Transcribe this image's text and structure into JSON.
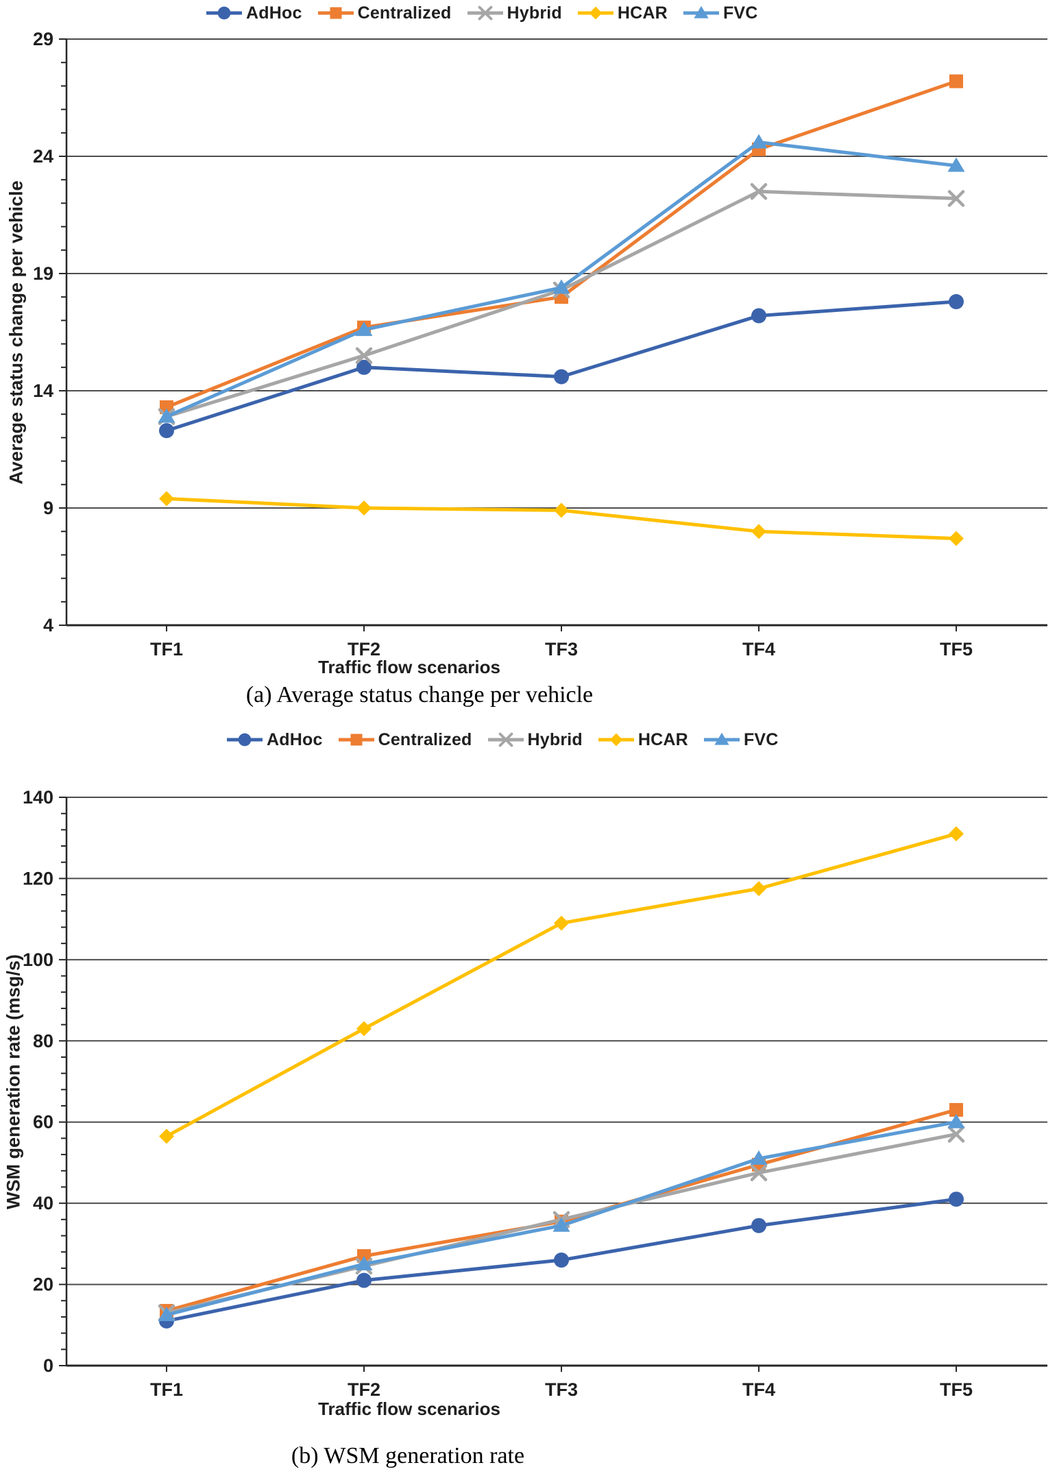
{
  "figure_captions": {
    "a": "(a) Average status change per vehicle",
    "b": "(b) WSM generation rate"
  },
  "colors": {
    "adhoc": "#3B63AC",
    "centralized": "#ED7D31",
    "hybrid": "#A6A6A6",
    "hcar": "#FFC000",
    "fvc": "#5B9BD5",
    "gridline": "#4d4d4d",
    "axis": "#262626"
  },
  "chart_data": [
    {
      "type": "line",
      "title": "",
      "categories": [
        "TF1",
        "TF2",
        "TF3",
        "TF4",
        "TF5"
      ],
      "xlabel": "Traffic flow scenarios",
      "ylabel": "Average status change per vehicle",
      "ylim": [
        4,
        29
      ],
      "yticks": [
        4,
        9,
        14,
        19,
        24,
        29
      ],
      "minor_tick_step": 1,
      "grid": true,
      "legend_position": "top",
      "series": [
        {
          "name": "AdHoc",
          "color": "#3B63AC",
          "marker": "circle",
          "values": [
            12.3,
            15.0,
            14.6,
            17.2,
            17.8
          ]
        },
        {
          "name": "Centralized",
          "color": "#ED7D31",
          "marker": "square",
          "values": [
            13.3,
            16.7,
            18.0,
            24.3,
            27.2
          ]
        },
        {
          "name": "Hybrid",
          "color": "#A6A6A6",
          "marker": "x",
          "values": [
            12.9,
            15.5,
            18.3,
            22.5,
            22.2
          ]
        },
        {
          "name": "HCAR",
          "color": "#FFC000",
          "marker": "diamond",
          "values": [
            9.4,
            9.0,
            8.9,
            8.0,
            7.7
          ]
        },
        {
          "name": "FVC",
          "color": "#5B9BD5",
          "marker": "triangle",
          "values": [
            12.9,
            16.6,
            18.4,
            24.6,
            23.6
          ]
        }
      ]
    },
    {
      "type": "line",
      "title": "",
      "categories": [
        "TF1",
        "TF2",
        "TF3",
        "TF4",
        "TF5"
      ],
      "xlabel": "Traffic flow scenarios",
      "ylabel": "WSM generation rate (msg/s)",
      "ylim": [
        0,
        140
      ],
      "yticks": [
        0,
        20,
        40,
        60,
        80,
        100,
        120,
        140
      ],
      "minor_tick_step": 4,
      "grid": true,
      "legend_position": "top",
      "series": [
        {
          "name": "AdHoc",
          "color": "#3B63AC",
          "marker": "circle",
          "values": [
            11,
            21,
            26,
            34.5,
            41
          ]
        },
        {
          "name": "Centralized",
          "color": "#ED7D31",
          "marker": "square",
          "values": [
            13.5,
            27,
            35.5,
            49.5,
            63
          ]
        },
        {
          "name": "Hybrid",
          "color": "#A6A6A6",
          "marker": "x",
          "values": [
            13,
            24.5,
            36,
            47.5,
            57
          ]
        },
        {
          "name": "HCAR",
          "color": "#FFC000",
          "marker": "diamond",
          "values": [
            56.5,
            83,
            109,
            117.5,
            131
          ]
        },
        {
          "name": "FVC",
          "color": "#5B9BD5",
          "marker": "triangle",
          "values": [
            12.5,
            25,
            34.5,
            51,
            60
          ]
        }
      ]
    }
  ]
}
